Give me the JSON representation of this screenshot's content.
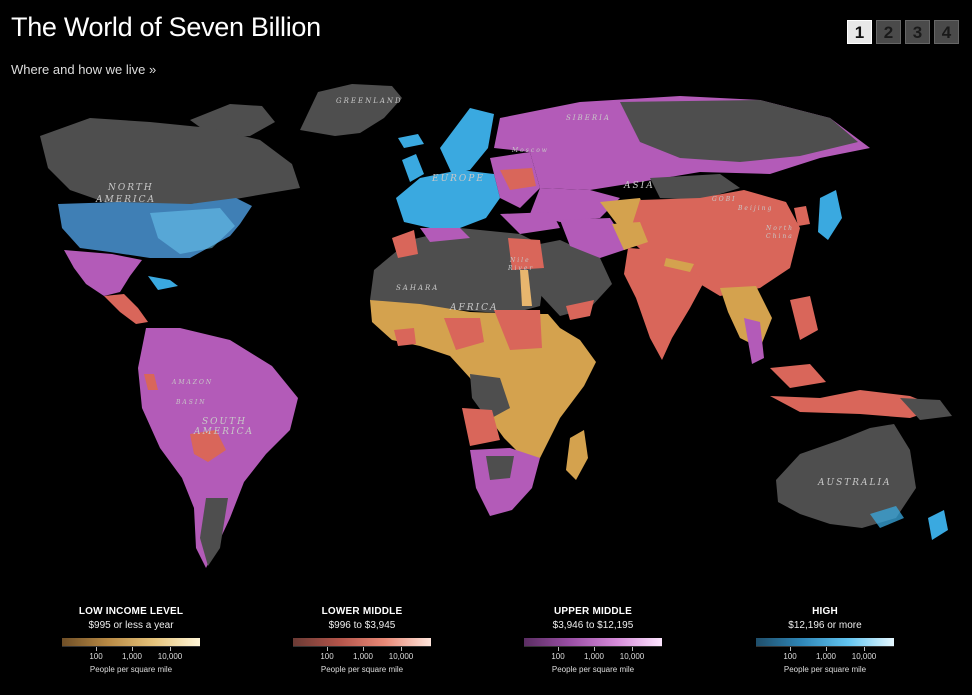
{
  "header": {
    "title": "The World of Seven Billion",
    "subtitle": "Where and how we live »"
  },
  "pager": {
    "pages": [
      "1",
      "2",
      "3",
      "4"
    ],
    "active": "1"
  },
  "map_labels": {
    "greenland": "GREENLAND",
    "north_america_1": "NORTH",
    "north_america_2": "AMERICA",
    "europe": "EUROPE",
    "siberia": "SIBERIA",
    "asia": "ASIA",
    "gobi": "GOBI",
    "moscow": "Moscow",
    "beijing": "Beijing",
    "north_china_1": "North",
    "north_china_2": "China",
    "nile_1": "Nile",
    "nile_2": "River",
    "sahara": "SAHARA",
    "africa": "AFRICA",
    "amazon": "AMAZON",
    "basin": "BASIN",
    "south_america_1": "SOUTH",
    "south_america_2": "AMERICA",
    "australia": "AUSTRALIA"
  },
  "colors": {
    "low": "#d4a24e",
    "lower_middle": "#d9665a",
    "upper_middle": "#b35bb8",
    "high": "#3aa9e0",
    "no_data": "#4e4e4e"
  },
  "legend": [
    {
      "id": "low",
      "title": "LOW INCOME LEVEL",
      "range": "$995 or less a year",
      "gradient": [
        "#6e4e26",
        "#b98a45",
        "#e6c47c",
        "#fff6d8"
      ],
      "ticks": [
        "100",
        "1,000",
        "10,000"
      ],
      "unit": "People per square mile"
    },
    {
      "id": "lower-middle",
      "title": "LOWER MIDDLE",
      "range": "$996 to $3,945",
      "gradient": [
        "#6a3a34",
        "#b3544a",
        "#e98a78",
        "#ffe6dc"
      ],
      "ticks": [
        "100",
        "1,000",
        "10,000"
      ],
      "unit": "People per square mile"
    },
    {
      "id": "upper-middle",
      "title": "UPPER MIDDLE",
      "range": "$3,946 to $12,195",
      "gradient": [
        "#5a2d62",
        "#9a4fa5",
        "#d58ad8",
        "#fde6ff"
      ],
      "ticks": [
        "100",
        "1,000",
        "10,000"
      ],
      "unit": "People per square mile"
    },
    {
      "id": "high",
      "title": "HIGH",
      "range": "$12,196 or more",
      "gradient": [
        "#1f4e6a",
        "#2f87b8",
        "#62c4f0",
        "#e6f8ff"
      ],
      "ticks": [
        "100",
        "1,000",
        "10,000"
      ],
      "unit": "People per square mile"
    }
  ]
}
